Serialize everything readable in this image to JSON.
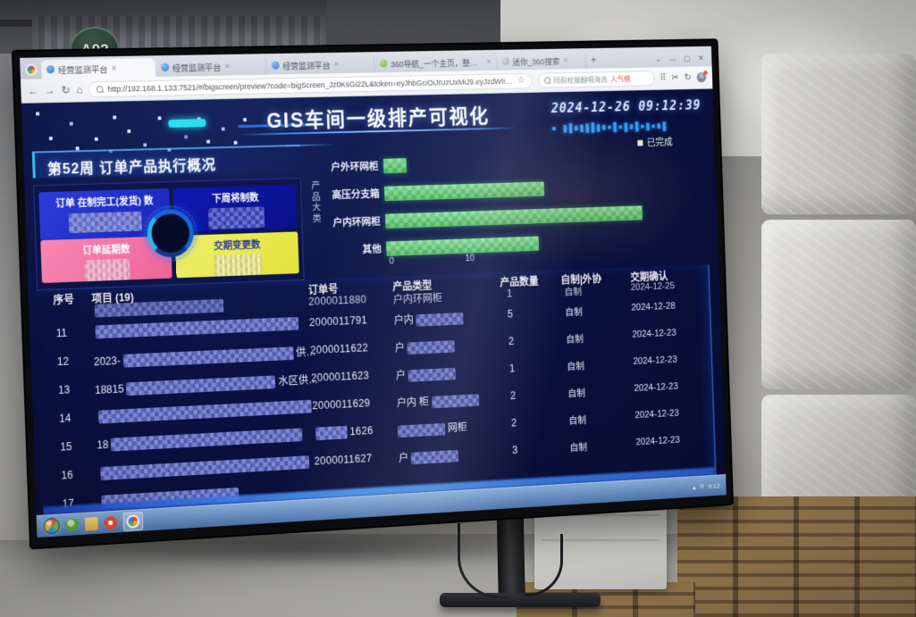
{
  "scene": {
    "column_sign": "A02"
  },
  "browser": {
    "tabs": [
      {
        "title": "经营监测平台"
      },
      {
        "title": "经营监测平台"
      },
      {
        "title": "经营监测平台"
      },
      {
        "title": "360导航_一个主页，整个世界"
      },
      {
        "title": "迷你_360搜索"
      }
    ],
    "url": "http://192.168.1.133:7521/#/bigscreen/preview?code=bigScreen_Jz0KsGi22L&token=eyJhbGciOiJIUzUxMiJ9.eyJzdWIiOiJsb2dpblVzZXIiLCJ1c2VySWQiOjEsImV4cCI6MTczNTI1NDM1OX0",
    "hot_search": "同款校服翻唱海选",
    "hot_search_tag": "人气榜"
  },
  "glyphs": {
    "close": "✕",
    "back": "←",
    "forward": "→",
    "refresh": "↻",
    "home": "⌂",
    "star": "☆",
    "grid": "⠿",
    "scissors": "✂",
    "redo": "↻",
    "min": "—",
    "max": "▢",
    "caret": "⌄",
    "plus": "+",
    "tray_up": "▴",
    "tray_net": "⛗"
  },
  "dashboard": {
    "title": "GIS车间一级排产可视化",
    "timestamp": "2024-12-26 09:12:39",
    "panel_title": "第52周 订单产品执行概况",
    "stats": [
      {
        "label": "订单 在制完工(发货) 数",
        "value_visible": false
      },
      {
        "label": "下周将制数",
        "value_visible": false
      },
      {
        "label": "订单延期数",
        "value_visible": false
      },
      {
        "label": "交期变更数",
        "value_visible": false
      }
    ],
    "legend": "已完成"
  },
  "chart_data": {
    "type": "bar",
    "orientation": "horizontal",
    "title": "",
    "categories": [
      "户外环网柜",
      "高压分支箱",
      "户内环网柜",
      "其他"
    ],
    "series": [
      {
        "name": "已完成",
        "values": [
          3,
          21,
          34,
          20
        ]
      }
    ],
    "ylabel": "产品大类",
    "xlabel": "",
    "xticks": [
      "0",
      "10"
    ],
    "xlim": [
      0,
      40
    ],
    "legend_position": "top-right",
    "grid": false,
    "bar_color": "#3ec457",
    "note": "bar lengths partially obscured by mosaic censoring; values estimated"
  },
  "table": {
    "headers": [
      "序号",
      "项目 (19)",
      "订单号",
      "产品类型",
      "产品数量",
      "自制|外协",
      "交期确认"
    ],
    "scrolled_row": {
      "no": "",
      "order": "2000011880",
      "type_fragment": "户内环网柜",
      "qty": "1",
      "make": "自制",
      "date": "2024-12-25"
    },
    "rows": [
      {
        "no": "11",
        "project_prefix": "",
        "project_suffix": "",
        "order": "2000011791",
        "type_fragment": "户内",
        "qty": "5",
        "make": "自制",
        "date": "2024-12-28"
      },
      {
        "no": "12",
        "project_prefix": "2023-",
        "project_suffix": "供…",
        "order": "2000011622",
        "type_fragment": "户",
        "qty": "2",
        "make": "自制",
        "date": "2024-12-23"
      },
      {
        "no": "13",
        "project_prefix": "18815",
        "project_suffix": "水区供…",
        "order": "2000011623",
        "type_fragment": "户",
        "qty": "1",
        "make": "自制",
        "date": "2024-12-23"
      },
      {
        "no": "14",
        "project_prefix": "",
        "project_suffix": "",
        "order": "2000011629",
        "type_fragment": "户内 柜",
        "qty": "2",
        "make": "自制",
        "date": "2024-12-23"
      },
      {
        "no": "15",
        "project_prefix": "18",
        "project_suffix": "",
        "order": "1626",
        "type_fragment": "网柜",
        "qty": "2",
        "make": "自制",
        "date": "2024-12-23"
      },
      {
        "no": "16",
        "project_prefix": "",
        "project_suffix": "",
        "order": "2000011627",
        "type_fragment": "户",
        "qty": "3",
        "make": "自制",
        "date": "2024-12-23"
      },
      {
        "no": "17",
        "project_prefix": "",
        "project_suffix": "",
        "order": "",
        "type_fragment": "",
        "qty": "",
        "make": "",
        "date": ""
      }
    ]
  },
  "taskbar": {
    "clock": "9:12"
  }
}
